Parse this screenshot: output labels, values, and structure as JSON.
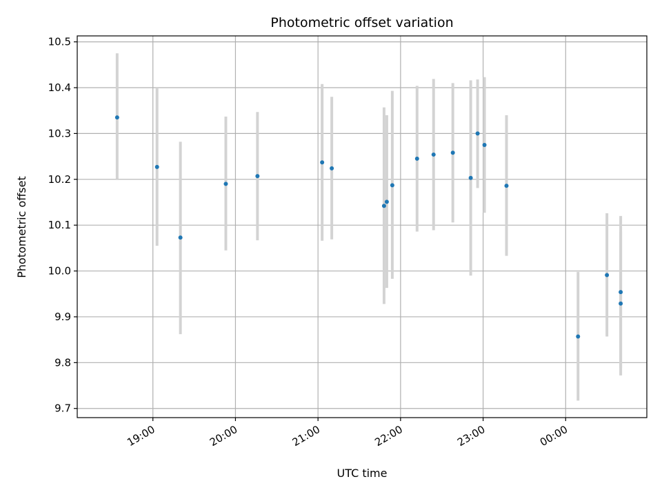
{
  "chart_data": {
    "type": "scatter",
    "title": "Photometric offset variation",
    "xlabel": "UTC time",
    "ylabel": "Photometric offset",
    "x_ticks": [
      "19:00",
      "20:00",
      "21:00",
      "22:00",
      "23:00",
      "00:00"
    ],
    "y_ticks": [
      "9.7",
      "9.8",
      "9.9",
      "10.0",
      "10.1",
      "10.2",
      "10.3",
      "10.4",
      "10.5"
    ],
    "grid": true,
    "xlim": [
      "18:05",
      "00:59"
    ],
    "ylim": [
      9.68,
      10.513
    ],
    "colors": {
      "point": "#1f77b4",
      "errorbar": "#d3d3d3",
      "grid": "#b0b0b0",
      "axis": "#000000"
    },
    "series": [
      {
        "points": [
          {
            "time": "18:34",
            "y": 10.335,
            "err_low": 10.2,
            "err_high": 10.475
          },
          {
            "time": "19:03",
            "y": 10.227,
            "err_low": 10.055,
            "err_high": 10.4
          },
          {
            "time": "19:20",
            "y": 10.073,
            "err_low": 9.862,
            "err_high": 10.282
          },
          {
            "time": "19:53",
            "y": 10.19,
            "err_low": 10.045,
            "err_high": 10.337
          },
          {
            "time": "20:16",
            "y": 10.207,
            "err_low": 10.067,
            "err_high": 10.347
          },
          {
            "time": "21:03",
            "y": 10.237,
            "err_low": 10.066,
            "err_high": 10.408
          },
          {
            "time": "21:10",
            "y": 10.224,
            "err_low": 10.069,
            "err_high": 10.38
          },
          {
            "time": "21:48",
            "y": 10.142,
            "err_low": 9.928,
            "err_high": 10.357
          },
          {
            "time": "21:50",
            "y": 10.151,
            "err_low": 9.963,
            "err_high": 10.34
          },
          {
            "time": "21:54",
            "y": 10.187,
            "err_low": 9.983,
            "err_high": 10.393
          },
          {
            "time": "22:12",
            "y": 10.245,
            "err_low": 10.086,
            "err_high": 10.404
          },
          {
            "time": "22:24",
            "y": 10.254,
            "err_low": 10.089,
            "err_high": 10.419
          },
          {
            "time": "22:38",
            "y": 10.258,
            "err_low": 10.106,
            "err_high": 10.41
          },
          {
            "time": "22:51",
            "y": 10.203,
            "err_low": 9.99,
            "err_high": 10.416
          },
          {
            "time": "22:56",
            "y": 10.3,
            "err_low": 10.181,
            "err_high": 10.418
          },
          {
            "time": "23:01",
            "y": 10.275,
            "err_low": 10.127,
            "err_high": 10.423
          },
          {
            "time": "23:17",
            "y": 10.186,
            "err_low": 10.033,
            "err_high": 10.34
          },
          {
            "time": "00:09",
            "y": 9.857,
            "err_low": 9.717,
            "err_high": 9.998
          },
          {
            "time": "00:30",
            "y": 9.991,
            "err_low": 9.857,
            "err_high": 10.126
          },
          {
            "time": "00:40",
            "y": 9.929,
            "err_low": 9.772,
            "err_high": 10.086
          },
          {
            "time": "00:40",
            "y": 9.954,
            "err_low": 9.788,
            "err_high": 10.12
          }
        ]
      }
    ]
  }
}
